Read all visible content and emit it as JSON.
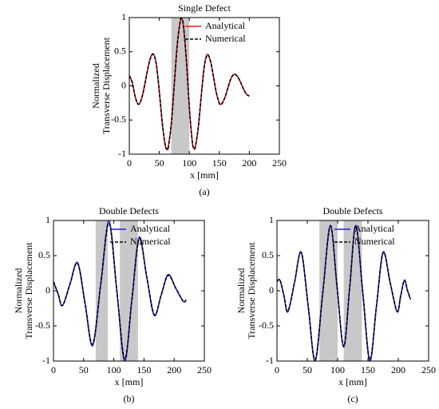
{
  "chart_data": [
    {
      "type": "line",
      "title": "Single Defect",
      "panel_label": "(a)",
      "xlabel": "x [mm]",
      "ylabel": [
        "Normalized",
        "Transverse Displacement"
      ],
      "x": [
        0,
        5,
        10,
        15,
        20,
        25,
        30,
        35,
        40,
        45,
        50,
        55,
        60,
        63,
        65,
        70,
        75,
        80,
        85,
        87,
        90,
        95,
        100,
        105,
        108,
        110,
        115,
        120,
        125,
        130,
        135,
        140,
        145,
        150,
        152,
        155,
        160,
        165,
        170,
        175,
        180,
        185,
        190,
        195,
        200
      ],
      "series": [
        {
          "name": "Analytical",
          "color": "#e8141c",
          "linestyle": "solid",
          "values": [
            0.15,
            0.045,
            -0.165,
            -0.27,
            -0.2,
            -0.015,
            0.215,
            0.4,
            0.47,
            0.315,
            -0.084,
            -0.548,
            -0.874,
            -0.93,
            -0.897,
            -0.554,
            0.03,
            0.614,
            0.957,
            0.99,
            0.895,
            0.383,
            -0.313,
            -0.824,
            -0.92,
            -0.892,
            -0.603,
            -0.134,
            0.29,
            0.46,
            0.37,
            0.146,
            -0.102,
            -0.255,
            -0.27,
            -0.252,
            -0.151,
            -0.006,
            0.12,
            0.17,
            0.14,
            0.06,
            -0.04,
            -0.12,
            -0.15
          ]
        },
        {
          "name": "Numerical",
          "color": "#000000",
          "linestyle": "dashed",
          "values": [
            0.15,
            0.045,
            -0.165,
            -0.27,
            -0.2,
            -0.015,
            0.215,
            0.4,
            0.46,
            0.315,
            -0.084,
            -0.548,
            -0.874,
            -0.92,
            -0.897,
            -0.554,
            0.03,
            0.614,
            0.95,
            0.98,
            0.895,
            0.383,
            -0.313,
            -0.824,
            -0.91,
            -0.892,
            -0.603,
            -0.134,
            0.29,
            0.45,
            0.37,
            0.146,
            -0.102,
            -0.255,
            -0.27,
            -0.252,
            -0.151,
            -0.006,
            0.12,
            0.17,
            0.14,
            0.06,
            -0.04,
            -0.12,
            -0.15
          ]
        }
      ],
      "shaded": [
        [
          70,
          100
        ]
      ],
      "xlim": [
        0,
        250
      ],
      "ylim": [
        -1,
        1
      ],
      "xticks": [
        0,
        50,
        100,
        150,
        200,
        250
      ],
      "yticks": [
        -1,
        -0.5,
        0,
        0.5,
        1
      ],
      "legend": "upper right",
      "shade_color": "#c8c8c8"
    },
    {
      "type": "line",
      "title": "Double Defects",
      "panel_label": "(b)",
      "xlabel": "x [mm]",
      "ylabel": [
        "Normalized",
        "Transverse Displacement"
      ],
      "x": [
        0,
        7.5,
        15,
        27.5,
        40,
        52.5,
        65,
        78.5,
        92,
        105,
        118,
        130,
        142,
        154.5,
        167,
        178.5,
        190,
        202.5,
        215,
        220
      ],
      "series": [
        {
          "name": "Analytical",
          "color": "#1f1fd6",
          "linestyle": "solid",
          "values": [
            0.13,
            -0.04,
            -0.21,
            0.1,
            0.4,
            -0.19,
            -0.78,
            0.105,
            0.99,
            0,
            -1.0,
            -0.12,
            0.76,
            0.2,
            -0.35,
            -0.06,
            0.23,
            0.04,
            -0.15,
            -0.13
          ]
        },
        {
          "name": "Numerical",
          "color": "#000000",
          "linestyle": "dashed",
          "values": [
            0.13,
            -0.04,
            -0.21,
            0.1,
            0.39,
            -0.19,
            -0.76,
            0.105,
            0.96,
            0,
            -0.97,
            -0.12,
            0.74,
            0.2,
            -0.34,
            -0.06,
            0.22,
            0.04,
            -0.15,
            -0.13
          ]
        }
      ],
      "shaded": [
        [
          70,
          90
        ],
        [
          110,
          140
        ]
      ],
      "xlim": [
        0,
        250
      ],
      "ylim": [
        -1,
        1
      ],
      "xticks": [
        0,
        50,
        100,
        150,
        200,
        250
      ],
      "yticks": [
        -1,
        -0.5,
        0,
        0.5,
        1
      ],
      "legend": "upper right",
      "shade_color": "#c8c8c8"
    },
    {
      "type": "line",
      "title": "Double Defects",
      "panel_label": "(c)",
      "xlabel": "x [mm]",
      "ylabel": [
        "Normalized",
        "Transverse Displacement"
      ],
      "x": [
        0,
        5,
        11.5,
        18,
        29,
        40,
        51.5,
        63,
        75.5,
        88,
        99,
        110,
        120,
        130,
        141.5,
        153,
        164,
        175,
        186.5,
        198,
        204,
        210,
        215,
        220
      ],
      "series": [
        {
          "name": "Analytical",
          "color": "#1f1fd6",
          "linestyle": "solid",
          "values": [
            0.13,
            0.15,
            -0.07,
            -0.3,
            0.12,
            0.55,
            -0.22,
            -1.0,
            -0.03,
            0.93,
            0.06,
            -0.8,
            0.06,
            0.93,
            -0.03,
            -1.0,
            -0.22,
            0.55,
            0.12,
            -0.3,
            -0.07,
            0.15,
            0.01,
            -0.12
          ]
        },
        {
          "name": "Numerical",
          "color": "#000000",
          "linestyle": "dashed",
          "values": [
            0.13,
            0.15,
            -0.07,
            -0.29,
            0.12,
            0.54,
            -0.22,
            -0.98,
            -0.03,
            0.92,
            0.06,
            -0.79,
            0.06,
            0.92,
            -0.03,
            -0.98,
            -0.22,
            0.54,
            0.12,
            -0.29,
            -0.07,
            0.15,
            0.01,
            -0.12
          ]
        }
      ],
      "shaded": [
        [
          70,
          100
        ],
        [
          110,
          140
        ]
      ],
      "xlim": [
        0,
        250
      ],
      "ylim": [
        -1,
        1
      ],
      "xticks": [
        0,
        50,
        100,
        150,
        200,
        250
      ],
      "yticks": [
        -1,
        -0.5,
        0,
        0.5,
        1
      ],
      "legend": "upper right",
      "shade_color": "#c8c8c8"
    }
  ]
}
